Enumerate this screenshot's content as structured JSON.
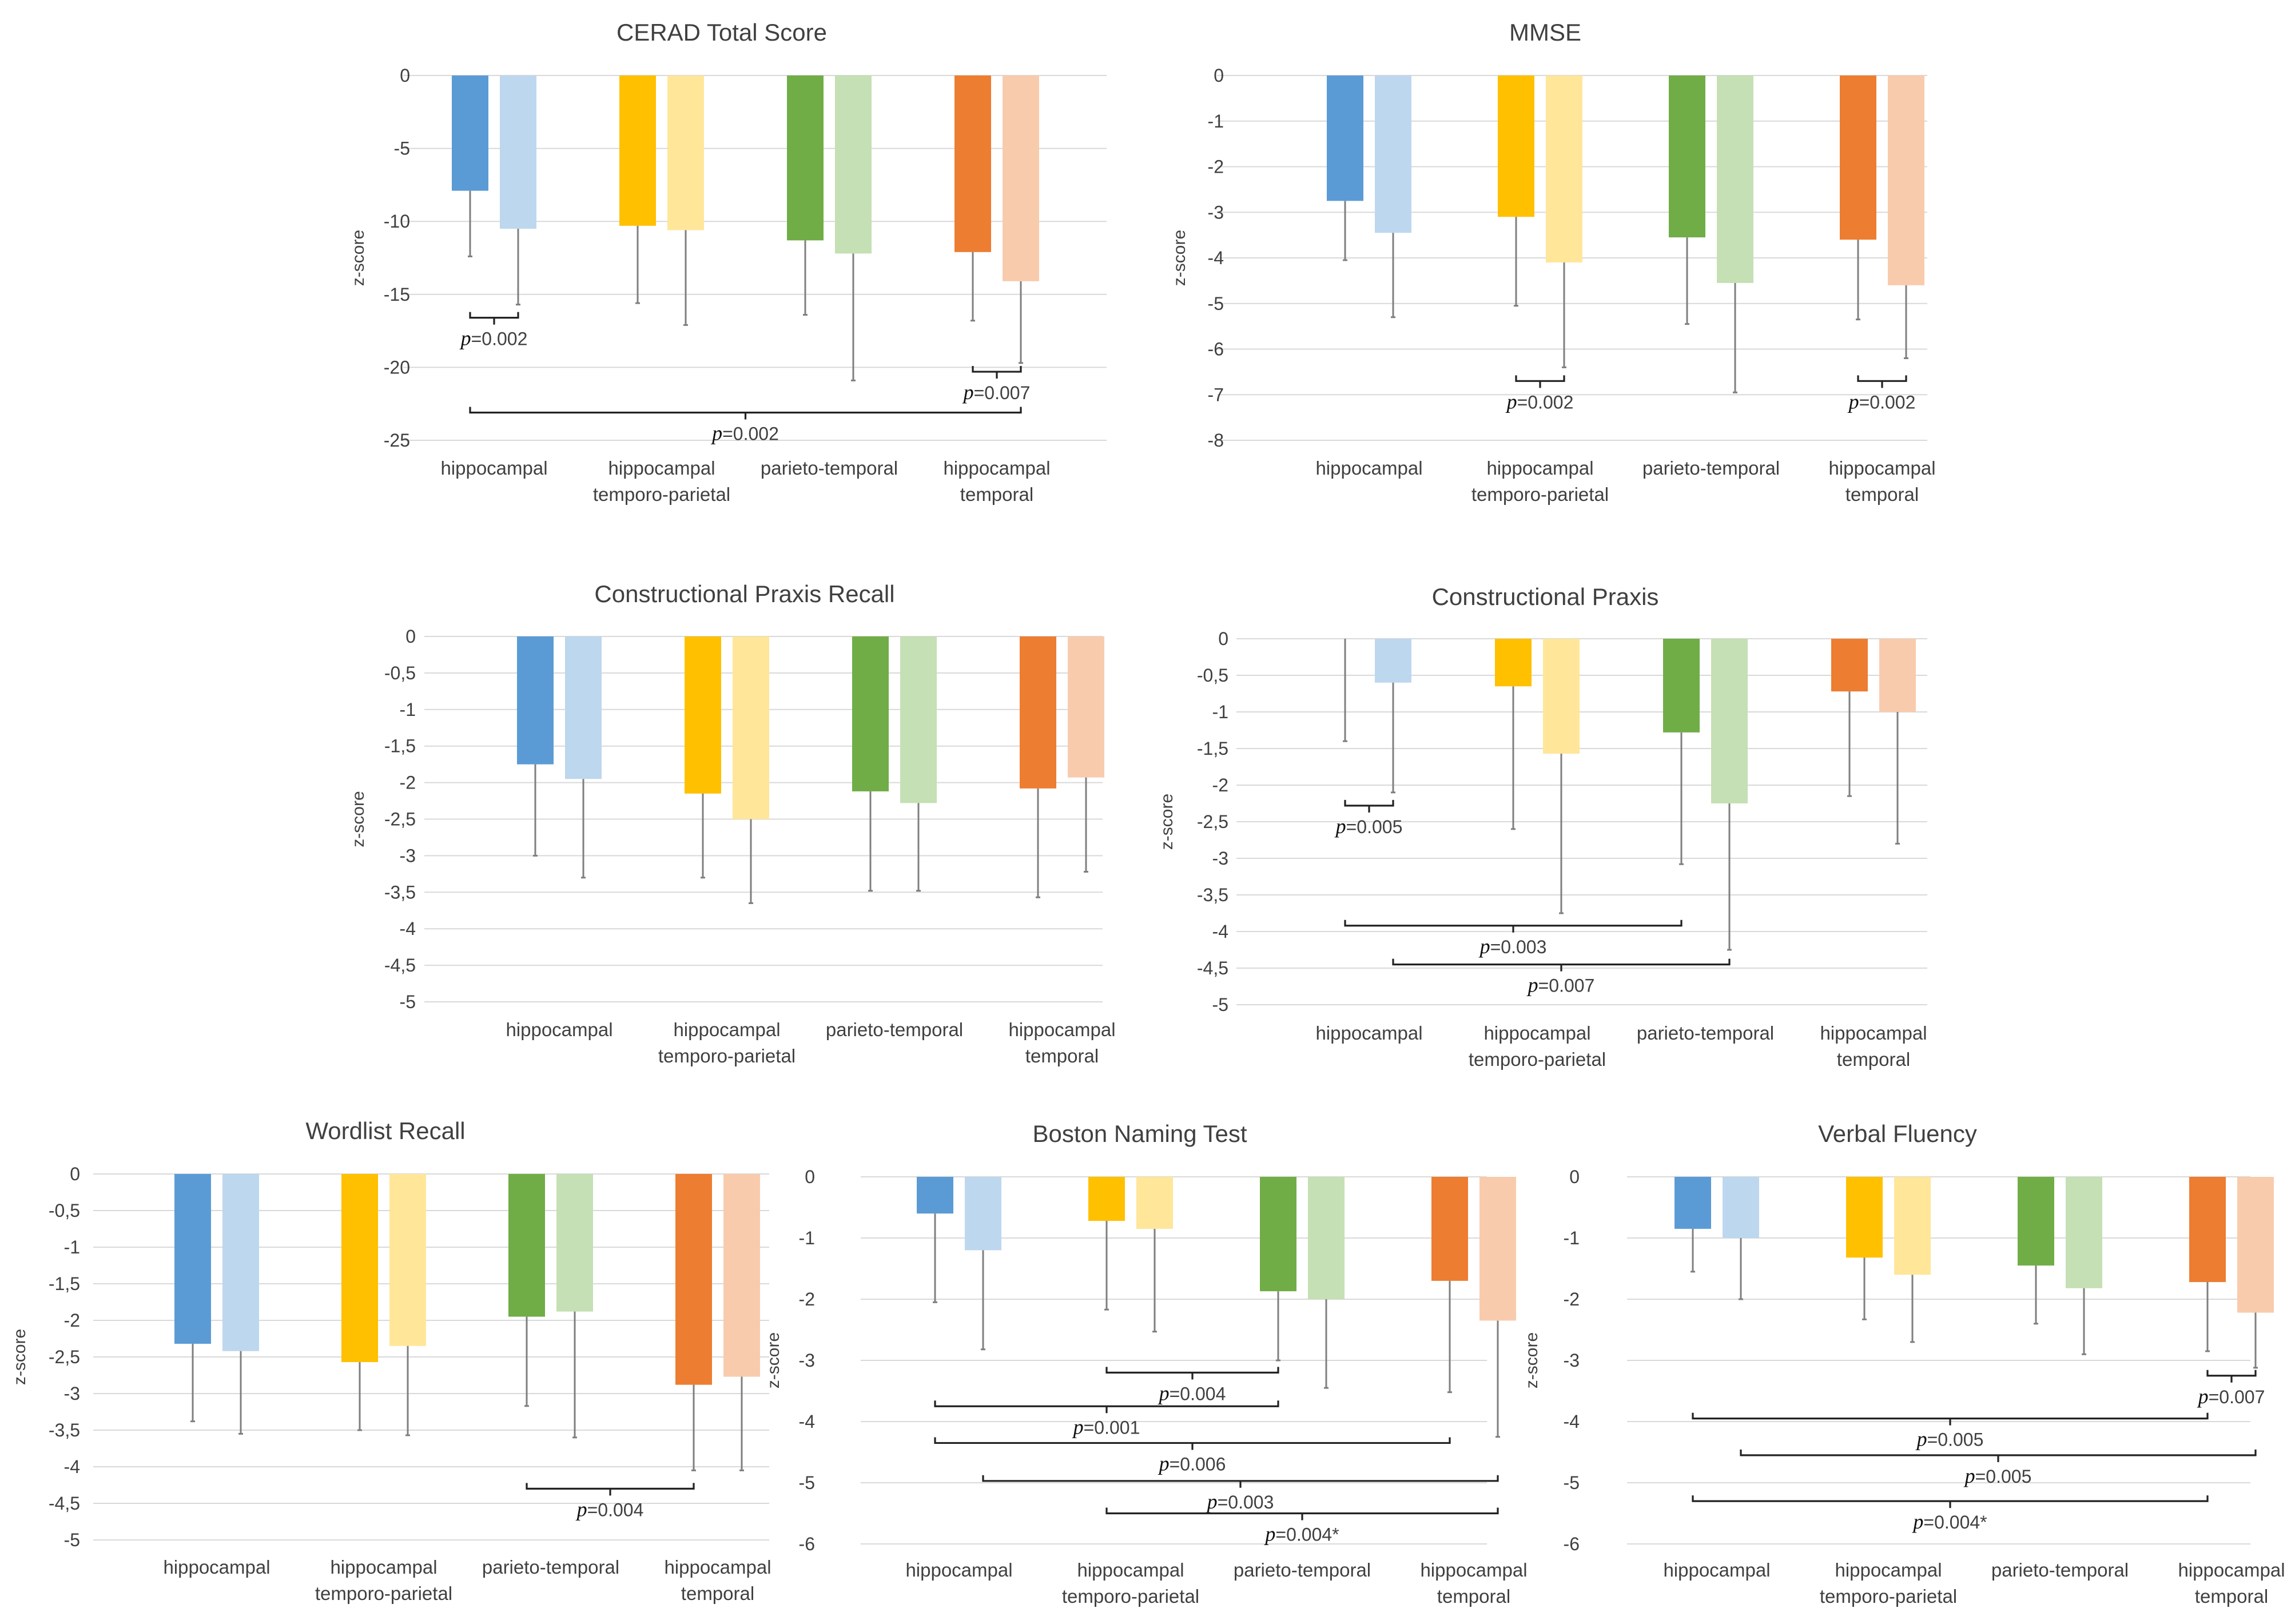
{
  "colors": {
    "hippocampal_dark": "#5b9bd5",
    "hippocampal_light": "#bdd7ee",
    "hippocampal_temporo_parietal_dark": "#ffc000",
    "hippocampal_temporo_parietal_light": "#ffe699",
    "parieto_temporal_dark": "#70ad47",
    "parieto_temporal_light": "#c5e0b4",
    "hippocampal_temporal_dark": "#ed7d31",
    "hippocampal_temporal_light": "#f8cbad"
  },
  "chart_data": [
    {
      "type": "bar",
      "title": "CERAD Total Score",
      "ylabel": "z-score",
      "ylim": [
        -25,
        0
      ],
      "yticks": [
        0,
        -5,
        -10,
        -15,
        -20,
        -25
      ],
      "tick_labels": [
        "0",
        "-5",
        "-10",
        "-15",
        "-20",
        "-25"
      ],
      "categories": [
        "hippocampal",
        "hippocampal temporo-parietal",
        "parieto-temporal",
        "hippocampal temporal"
      ],
      "category_lines": [
        [
          "hippocampal"
        ],
        [
          "hippocampal",
          "temporo-parietal"
        ],
        [
          "parieto-temporal"
        ],
        [
          "hippocampal",
          "temporal"
        ]
      ],
      "bars": [
        [
          {
            "v": -7.9,
            "e": -12.4
          },
          {
            "v": -10.5,
            "e": -15.7
          }
        ],
        [
          {
            "v": -10.3,
            "e": -15.6
          },
          {
            "v": -10.6,
            "e": -17.1
          }
        ],
        [
          {
            "v": -11.3,
            "e": -16.4
          },
          {
            "v": -12.2,
            "e": -20.9
          }
        ],
        [
          {
            "v": -12.1,
            "e": -16.8
          },
          {
            "v": -14.1,
            "e": -19.7
          }
        ]
      ],
      "brackets": [
        {
          "from": [
            0,
            0
          ],
          "to": [
            0,
            1
          ],
          "y": -16.6,
          "label": "=0.002"
        },
        {
          "from": [
            3,
            0
          ],
          "to": [
            3,
            1
          ],
          "y": -20.3,
          "label": "=0.007"
        },
        {
          "from": [
            0,
            0
          ],
          "to": [
            3,
            1
          ],
          "y": -23.1,
          "label": "=0.002"
        }
      ]
    },
    {
      "type": "bar",
      "title": "MMSE",
      "ylabel": "z-score",
      "ylim": [
        -8,
        0
      ],
      "yticks": [
        0,
        -1,
        -2,
        -3,
        -4,
        -5,
        -6,
        -7,
        -8
      ],
      "tick_labels": [
        "0",
        "-1",
        "-2",
        "-3",
        "-4",
        "-5",
        "-6",
        "-7",
        "-8"
      ],
      "categories": [
        "hippocampal",
        "hippocampal temporo-parietal",
        "parieto-temporal",
        "hippocampal temporal"
      ],
      "category_lines": [
        [
          "hippocampal"
        ],
        [
          "hippocampal",
          "temporo-parietal"
        ],
        [
          "parieto-temporal"
        ],
        [
          "hippocampal",
          "temporal"
        ]
      ],
      "bars": [
        [
          {
            "v": -2.75,
            "e": -4.05
          },
          {
            "v": -3.45,
            "e": -5.3
          }
        ],
        [
          {
            "v": -3.1,
            "e": -5.05
          },
          {
            "v": -4.1,
            "e": -6.4
          }
        ],
        [
          {
            "v": -3.55,
            "e": -5.45
          },
          {
            "v": -4.55,
            "e": -6.95
          }
        ],
        [
          {
            "v": -3.6,
            "e": -5.35
          },
          {
            "v": -4.6,
            "e": -6.2
          }
        ]
      ],
      "brackets": [
        {
          "from": [
            1,
            0
          ],
          "to": [
            1,
            1
          ],
          "y": -6.7,
          "label": "=0.002"
        },
        {
          "from": [
            3,
            0
          ],
          "to": [
            3,
            1
          ],
          "y": -6.7,
          "label": "=0.002"
        }
      ]
    },
    {
      "type": "bar",
      "title": "Constructional Praxis Recall",
      "ylabel": "z-score",
      "ylim": [
        -5,
        0
      ],
      "yticks": [
        0,
        -0.5,
        -1,
        -1.5,
        -2,
        -2.5,
        -3,
        -3.5,
        -4,
        -4.5,
        -5
      ],
      "tick_labels": [
        "0",
        "-0,5",
        "-1",
        "-1,5",
        "-2",
        "-2,5",
        "-3",
        "-3,5",
        "-4",
        "-4,5",
        "-5"
      ],
      "categories": [
        "hippocampal",
        "hippocampal temporo-parietal",
        "parieto-temporal",
        "hippocampal temporal"
      ],
      "category_lines": [
        [
          "hippocampal"
        ],
        [
          "hippocampal",
          "temporo-parietal"
        ],
        [
          "parieto-temporal"
        ],
        [
          "hippocampal",
          "temporal"
        ]
      ],
      "bars": [
        [
          {
            "v": -1.75,
            "e": -3.0
          },
          {
            "v": -1.95,
            "e": -3.3
          }
        ],
        [
          {
            "v": -2.15,
            "e": -3.3
          },
          {
            "v": -2.5,
            "e": -3.65
          }
        ],
        [
          {
            "v": -2.12,
            "e": -3.48
          },
          {
            "v": -2.28,
            "e": -3.48
          }
        ],
        [
          {
            "v": -2.08,
            "e": -3.57
          },
          {
            "v": -1.93,
            "e": -3.22
          }
        ]
      ],
      "brackets": []
    },
    {
      "type": "bar",
      "title": "Constructional Praxis",
      "ylabel": "z-score",
      "ylim": [
        -5,
        0
      ],
      "yticks": [
        0,
        -0.5,
        -1,
        -1.5,
        -2,
        -2.5,
        -3,
        -3.5,
        -4,
        -4.5,
        -5
      ],
      "tick_labels": [
        "0",
        "-0,5",
        "-1",
        "-1,5",
        "-2",
        "-2,5",
        "-3",
        "-3,5",
        "-4",
        "-4,5",
        "-5"
      ],
      "categories": [
        "hippocampal",
        "hippocampal temporo-parietal",
        "parieto-temporal",
        "hippocampal temporal"
      ],
      "category_lines": [
        [
          "hippocampal"
        ],
        [
          "hippocampal",
          "temporo-parietal"
        ],
        [
          "parieto-temporal"
        ],
        [
          "hippocampal",
          "temporal"
        ]
      ],
      "bars": [
        [
          {
            "v": 0,
            "e": -1.4
          },
          {
            "v": -0.6,
            "e": -2.1
          }
        ],
        [
          {
            "v": -0.65,
            "e": -2.6
          },
          {
            "v": -1.57,
            "e": -3.75
          }
        ],
        [
          {
            "v": -1.28,
            "e": -3.08
          },
          {
            "v": -2.25,
            "e": -4.25
          }
        ],
        [
          {
            "v": -0.72,
            "e": -2.15
          },
          {
            "v": -1.0,
            "e": -2.8
          }
        ]
      ],
      "brackets": [
        {
          "from": [
            0,
            0
          ],
          "to": [
            0,
            1
          ],
          "y": -2.28,
          "label": "=0.005"
        },
        {
          "from": [
            0,
            0
          ],
          "to": [
            2,
            0
          ],
          "y": -3.92,
          "label": "=0.003"
        },
        {
          "from": [
            0,
            1
          ],
          "to": [
            2,
            1
          ],
          "y": -4.45,
          "label": "=0.007"
        }
      ]
    },
    {
      "type": "bar",
      "title": "Wordlist Recall",
      "ylabel": "z-score",
      "ylim": [
        -5,
        0
      ],
      "yticks": [
        0,
        -0.5,
        -1,
        -1.5,
        -2,
        -2.5,
        -3,
        -3.5,
        -4,
        -4.5,
        -5
      ],
      "tick_labels": [
        "0",
        "-0,5",
        "-1",
        "-1,5",
        "-2",
        "-2,5",
        "-3",
        "-3,5",
        "-4",
        "-4,5",
        "-5"
      ],
      "categories": [
        "hippocampal",
        "hippocampal temporo-parietal",
        "parieto-temporal",
        "hippocampal temporal"
      ],
      "category_lines": [
        [
          "hippocampal"
        ],
        [
          "hippocampal",
          "temporo-parietal"
        ],
        [
          "parieto-temporal"
        ],
        [
          "hippocampal",
          "temporal"
        ]
      ],
      "bars": [
        [
          {
            "v": -2.32,
            "e": -3.38
          },
          {
            "v": -2.42,
            "e": -3.55
          }
        ],
        [
          {
            "v": -2.57,
            "e": -3.5
          },
          {
            "v": -2.35,
            "e": -3.57
          }
        ],
        [
          {
            "v": -1.95,
            "e": -3.17
          },
          {
            "v": -1.88,
            "e": -3.6
          }
        ],
        [
          {
            "v": -2.88,
            "e": -4.05
          },
          {
            "v": -2.77,
            "e": -4.05
          }
        ]
      ],
      "brackets": [
        {
          "from": [
            2,
            0
          ],
          "to": [
            3,
            0
          ],
          "y": -4.3,
          "label": "=0.004"
        }
      ]
    },
    {
      "type": "bar",
      "title": "Boston Naming Test",
      "ylabel": "z-score",
      "ylim": [
        -6,
        0
      ],
      "yticks": [
        0,
        -1,
        -2,
        -3,
        -4,
        -5,
        -6
      ],
      "tick_labels": [
        "0",
        "-1",
        "-2",
        "-3",
        "-4",
        "-5",
        "-6"
      ],
      "categories": [
        "hippocampal",
        "hippocampal temporo-parietal",
        "parieto-temporal",
        "hippocampal temporal"
      ],
      "category_lines": [
        [
          "hippocampal"
        ],
        [
          "hippocampal",
          "temporo-parietal"
        ],
        [
          "parieto-temporal"
        ],
        [
          "hippocampal",
          "temporal"
        ]
      ],
      "bars": [
        [
          {
            "v": -0.6,
            "e": -2.05
          },
          {
            "v": -1.2,
            "e": -2.82
          }
        ],
        [
          {
            "v": -0.72,
            "e": -2.17
          },
          {
            "v": -0.85,
            "e": -2.53
          }
        ],
        [
          {
            "v": -1.87,
            "e": -3.0
          },
          {
            "v": -2.0,
            "e": -3.45
          }
        ],
        [
          {
            "v": -1.7,
            "e": -3.52
          },
          {
            "v": -2.35,
            "e": -4.25
          }
        ]
      ],
      "brackets": [
        {
          "from": [
            1,
            0
          ],
          "to": [
            2,
            0
          ],
          "y": -3.2,
          "label": "=0.004"
        },
        {
          "from": [
            0,
            0
          ],
          "to": [
            2,
            0
          ],
          "y": -3.75,
          "label": "=0.001"
        },
        {
          "from": [
            0,
            0
          ],
          "to": [
            3,
            0
          ],
          "y": -4.35,
          "label": "=0.006"
        },
        {
          "from": [
            0,
            1
          ],
          "to": [
            3,
            1
          ],
          "y": -4.97,
          "label": "=0.003"
        },
        {
          "from": [
            1,
            0
          ],
          "to": [
            3,
            1
          ],
          "y": -5.5,
          "label": "=0.004*"
        }
      ]
    },
    {
      "type": "bar",
      "title": "Verbal Fluency",
      "ylabel": "z-score",
      "ylim": [
        -6,
        0
      ],
      "yticks": [
        0,
        -1,
        -2,
        -3,
        -4,
        -5,
        -6
      ],
      "tick_labels": [
        "0",
        "-1",
        "-2",
        "-3",
        "-4",
        "-5",
        "-6"
      ],
      "categories": [
        "hippocampal",
        "hippocampal temporo-parietal",
        "parieto-temporal",
        "hippocampal temporal"
      ],
      "category_lines": [
        [
          "hippocampal"
        ],
        [
          "hippocampal",
          "temporo-parietal"
        ],
        [
          "parieto-temporal"
        ],
        [
          "hippocampal",
          "temporal"
        ]
      ],
      "bars": [
        [
          {
            "v": -0.85,
            "e": -1.55
          },
          {
            "v": -1.0,
            "e": -2.0
          }
        ],
        [
          {
            "v": -1.32,
            "e": -2.33
          },
          {
            "v": -1.6,
            "e": -2.7
          }
        ],
        [
          {
            "v": -1.45,
            "e": -2.4
          },
          {
            "v": -1.82,
            "e": -2.9
          }
        ],
        [
          {
            "v": -1.72,
            "e": -2.85
          },
          {
            "v": -2.22,
            "e": -3.12
          }
        ]
      ],
      "brackets": [
        {
          "from": [
            3,
            0
          ],
          "to": [
            3,
            1
          ],
          "y": -3.25,
          "label": "=0.007"
        },
        {
          "from": [
            0,
            0
          ],
          "to": [
            3,
            0
          ],
          "y": -3.95,
          "label": "=0.005"
        },
        {
          "from": [
            0,
            1
          ],
          "to": [
            3,
            1
          ],
          "y": -4.55,
          "label": "=0.005"
        },
        {
          "from": [
            0,
            0
          ],
          "to": [
            3,
            0
          ],
          "y": -5.3,
          "label": "=0.004*"
        }
      ]
    }
  ]
}
